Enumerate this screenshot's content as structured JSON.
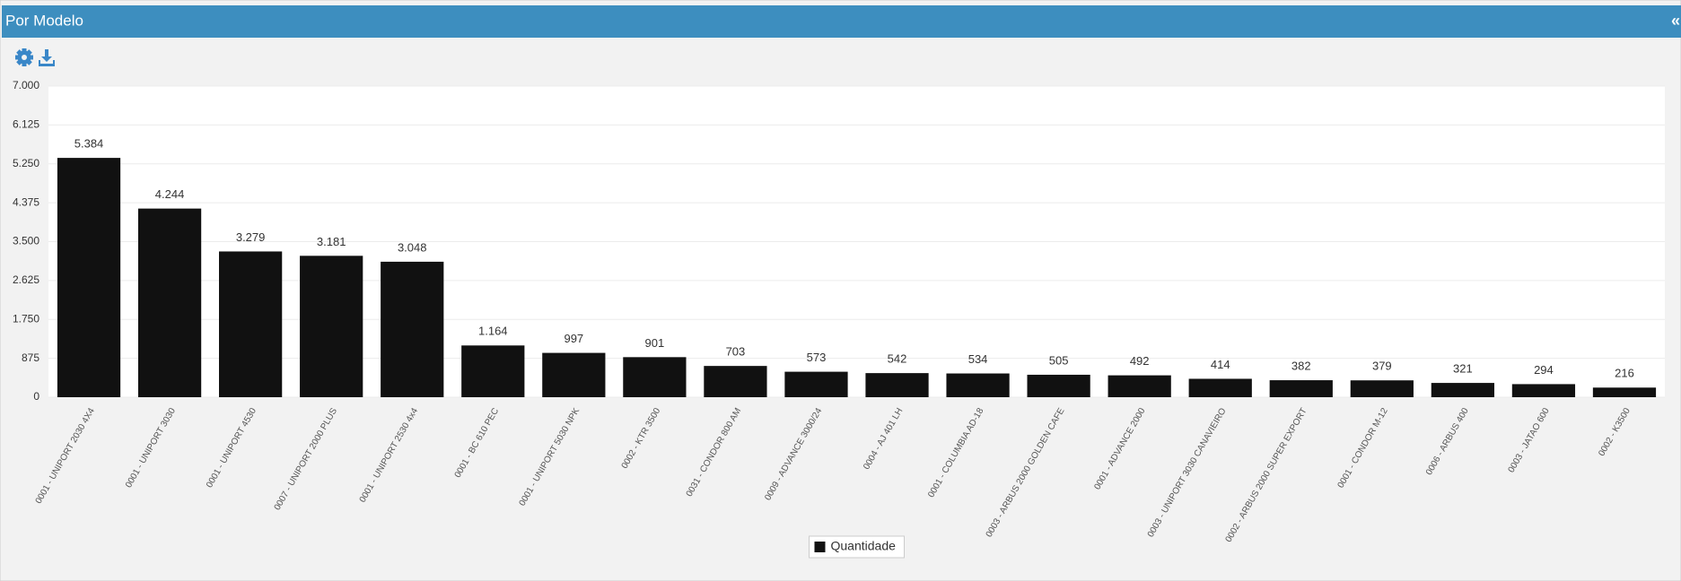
{
  "ui": {
    "collapse": "«"
  },
  "chart_data": {
    "type": "bar",
    "title": "Por Modelo",
    "categories": [
      "0001 - UNIPORT 2030 4X4",
      "0001 - UNIPORT 3030",
      "0001 - UNIPORT 4530",
      "0007 - UNIPORT 2000 PLUS",
      "0001 - UNIPORT 2530 4x4",
      "0001 - BC 610 PEC",
      "0001 - UNIPORT 5030 NPK",
      "0002 - KTR 3500",
      "0031 - CONDOR 800 AM",
      "0009 - ADVANCE 3000/24",
      "0004 - AJ 401 LH",
      "0001 - COLUMBIA AD-18",
      "0003 - ARBUS 2000 GOLDEN CAFE",
      "0001 - ADVANCE 2000",
      "0003 - UNIPORT 3030 CANAVIEIRO",
      "0002 - ARBUS 2000 SUPER EXPORT",
      "0001 - CONDOR M-12",
      "0006 - ARBUS 400",
      "0003 - JATAO 600",
      "0002 - K3500"
    ],
    "series": [
      {
        "name": "Quantidade",
        "color": "#111111",
        "values": [
          5384,
          4244,
          3279,
          3181,
          3048,
          1164,
          997,
          901,
          703,
          573,
          542,
          534,
          505,
          492,
          414,
          382,
          379,
          321,
          294,
          216
        ],
        "value_labels": [
          "5.384",
          "4.244",
          "3.279",
          "3.181",
          "3.048",
          "1.164",
          "997",
          "901",
          "703",
          "573",
          "542",
          "534",
          "505",
          "492",
          "414",
          "382",
          "379",
          "321",
          "294",
          "216"
        ]
      }
    ],
    "ylim": [
      0,
      7000
    ],
    "yticks": [
      0,
      875,
      {
        "value": 1750,
        "label": "1.750"
      },
      {
        "value": 2625,
        "label": "2.625"
      },
      {
        "value": 3500,
        "label": "3.500"
      },
      {
        "value": 4375,
        "label": "4.375"
      },
      {
        "value": 5250,
        "label": "5.250"
      },
      {
        "value": 6125,
        "label": "6.125"
      },
      {
        "value": 7000,
        "label": "7.000"
      }
    ],
    "grid": true,
    "legend": "bottom"
  }
}
